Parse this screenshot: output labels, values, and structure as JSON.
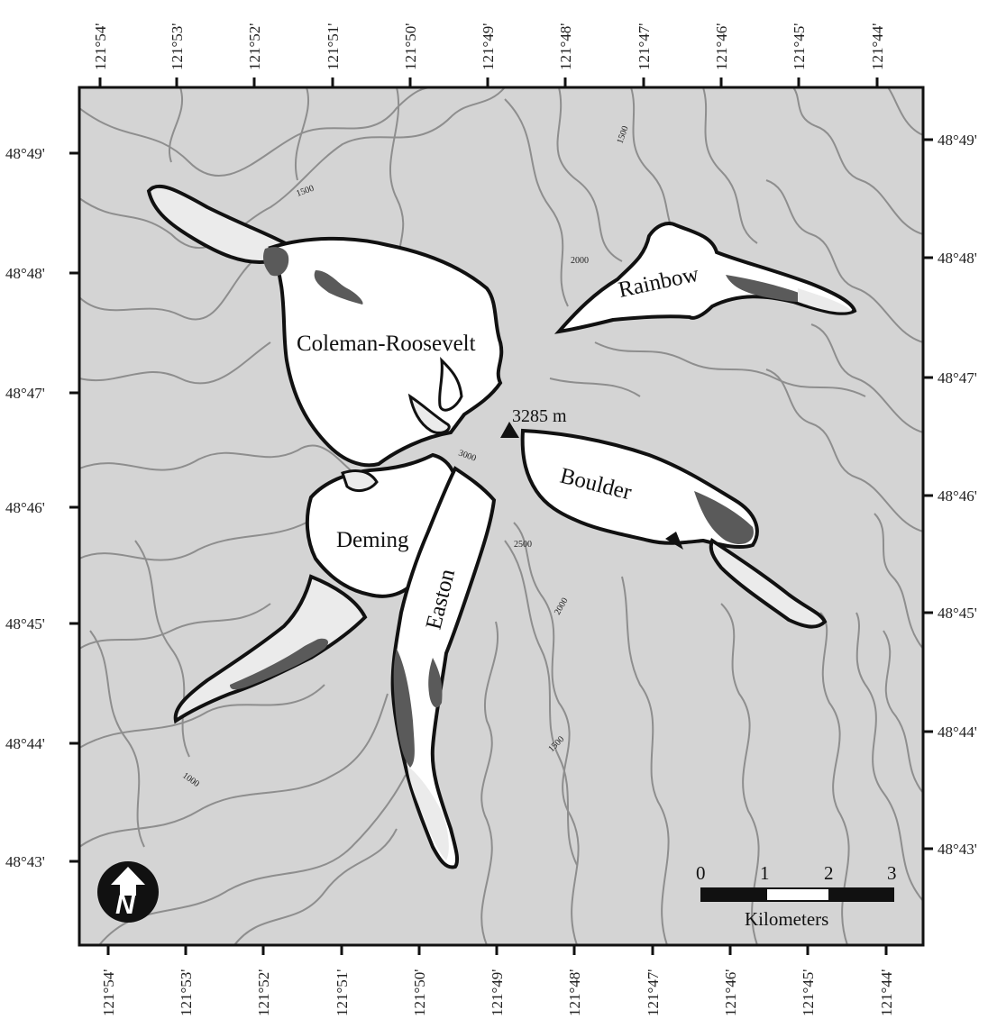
{
  "map": {
    "longitude_ticks": [
      "121°54'",
      "121°53'",
      "121°52'",
      "121°51'",
      "121°50'",
      "121°49'",
      "121°48'",
      "121°47'",
      "121°46'",
      "121°45'",
      "121°44'"
    ],
    "latitude_ticks": [
      "48°49'",
      "48°48'",
      "48°47'",
      "48°46'",
      "48°45'",
      "48°44'",
      "48°43'"
    ],
    "glaciers": {
      "coleman_roosevelt": "Coleman-Roosevelt",
      "rainbow": "Rainbow",
      "boulder": "Boulder",
      "deming": "Deming",
      "easton": "Easton"
    },
    "summit_label": "3285 m",
    "contour_labels": {
      "c1500_nw": "1500",
      "c1500_ne": "1500",
      "c2000_n": "2000",
      "c3000": "3000",
      "c2500": "2500",
      "c2000_se": "2000",
      "c1500_s": "1500",
      "c1000": "1000"
    },
    "scale_bar": {
      "ticks": [
        "0",
        "1",
        "2",
        "3"
      ],
      "unit": "Kilometers"
    },
    "north_arrow_letter": "N"
  },
  "colors": {
    "terrain": "#d4d4d4",
    "contour": "#8e8e8e",
    "glacier_ice": "#ffffff",
    "retreat_zone": "#ebebeb",
    "debris": "#5a5a5a",
    "outline": "#111111"
  }
}
